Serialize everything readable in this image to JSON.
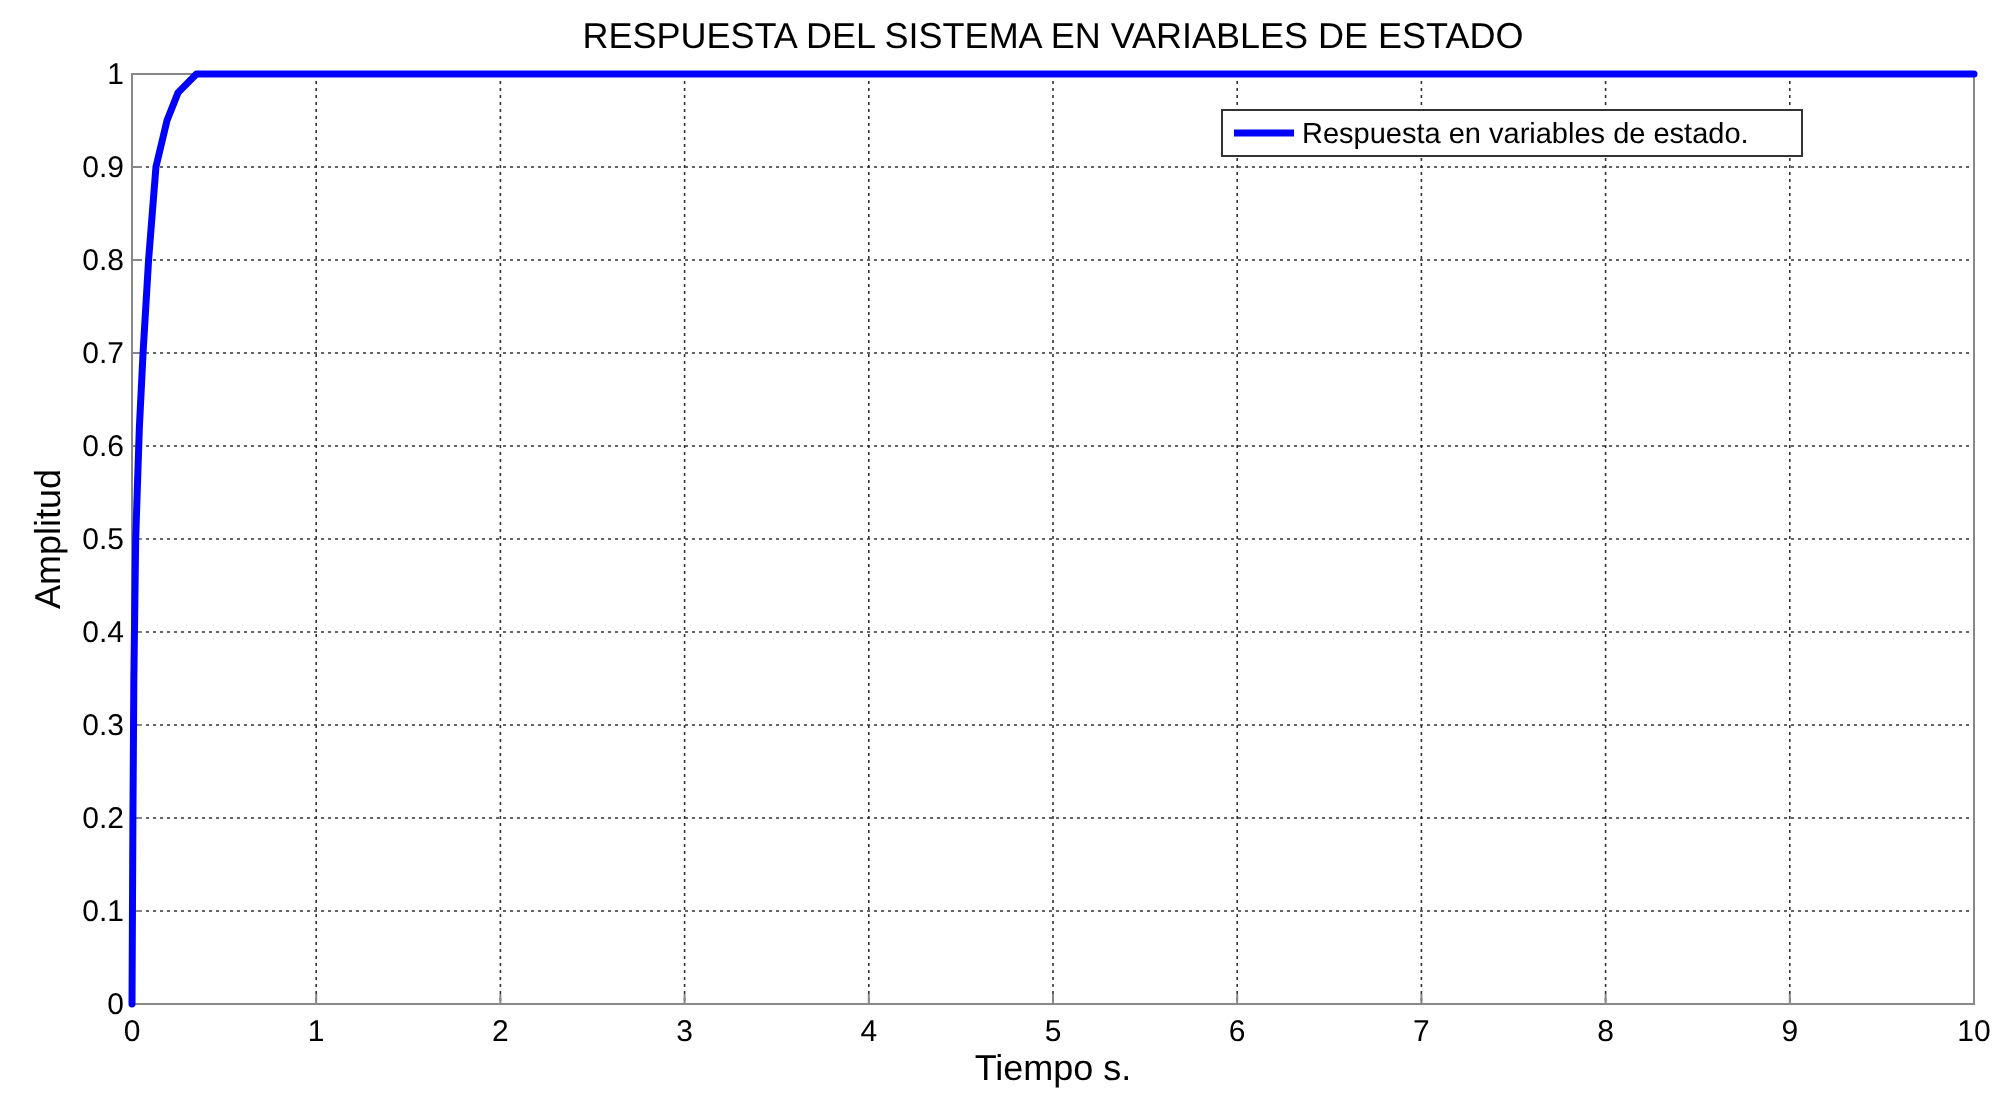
{
  "chart_data": {
    "type": "line",
    "title": "RESPUESTA DEL SISTEMA EN VARIABLES DE ESTADO",
    "xlabel": "Tiempo s.",
    "ylabel": "Amplitud",
    "series": [
      {
        "name": "Respuesta en variables de estado.",
        "color": "#0000ff",
        "x": [
          0,
          0.005,
          0.01,
          0.02,
          0.04,
          0.06,
          0.09,
          0.13,
          0.19,
          0.25,
          0.35,
          10
        ],
        "values": [
          0,
          0.2,
          0.35,
          0.5,
          0.62,
          0.7,
          0.8,
          0.9,
          0.95,
          0.98,
          1,
          1
        ]
      }
    ],
    "xlim": [
      0,
      10
    ],
    "xticks": [
      0,
      1,
      2,
      3,
      4,
      5,
      6,
      7,
      8,
      9,
      10
    ],
    "ylim": [
      0,
      1
    ],
    "yticks": [
      0,
      0.1,
      0.2,
      0.3,
      0.4,
      0.5,
      0.6,
      0.7,
      0.8,
      0.9,
      1
    ],
    "grid": true,
    "legend": "top right",
    "line_style": "solid",
    "marker": "none"
  }
}
